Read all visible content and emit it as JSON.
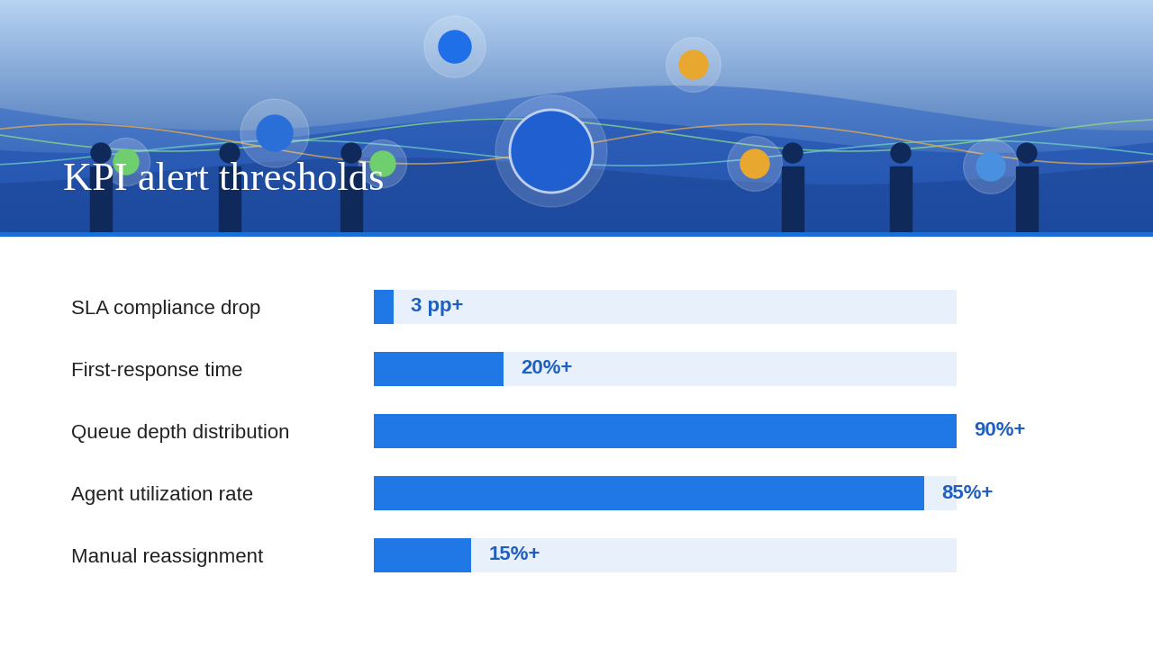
{
  "chart_data": {
    "type": "bar",
    "title": "KPI alert thresholds",
    "orientation": "horizontal",
    "categories": [
      "SLA compliance drop",
      "First-response time",
      "Queue depth distribution",
      "Agent utilization rate",
      "Manual reassignment"
    ],
    "values": [
      3,
      20,
      90,
      85,
      15
    ],
    "value_labels": [
      "3 pp+",
      "20%+",
      "90%+",
      "85%+",
      "15%+"
    ],
    "data_labels": true,
    "xlim": [
      0,
      90
    ],
    "tick_labels": "y",
    "grid": false,
    "color": "#1f78e6"
  }
}
